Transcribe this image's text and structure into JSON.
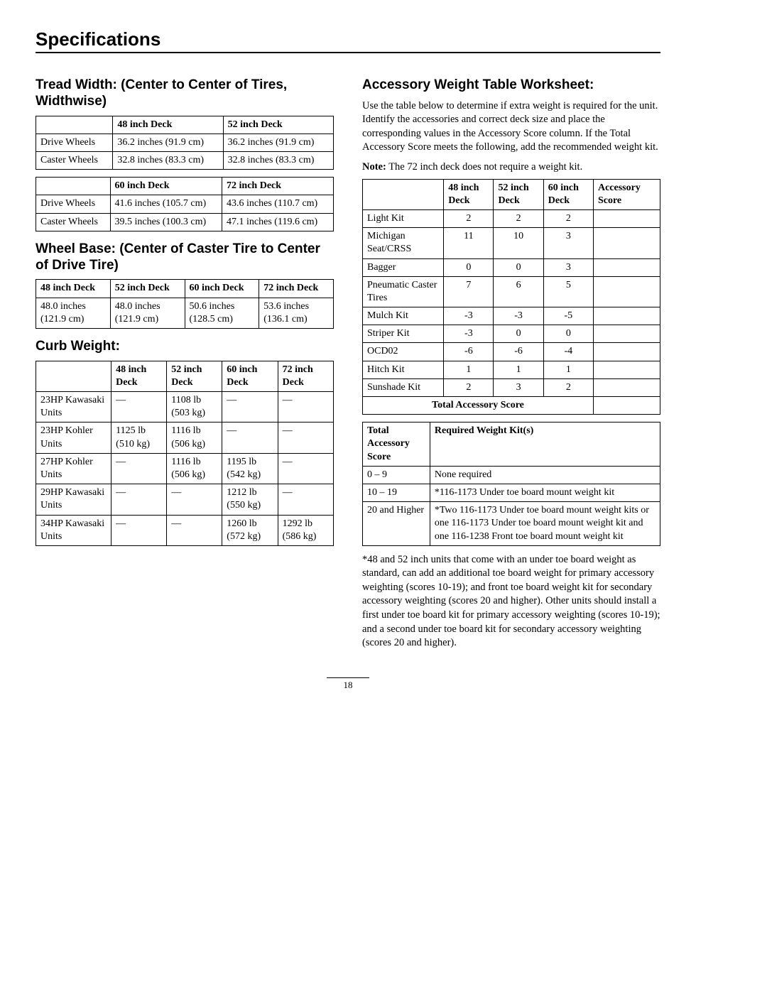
{
  "page_title": "Specifications",
  "page_number": "18",
  "left": {
    "tread_width": {
      "heading": "Tread Width: (Center to Center of Tires, Widthwise)",
      "table1": {
        "headers": [
          "",
          "48 inch Deck",
          "52 inch Deck"
        ],
        "rows": [
          [
            "Drive Wheels",
            "36.2 inches (91.9 cm)",
            "36.2 inches (91.9 cm)"
          ],
          [
            "Caster Wheels",
            "32.8 inches (83.3 cm)",
            "32.8 inches (83.3 cm)"
          ]
        ]
      },
      "table2": {
        "headers": [
          "",
          "60 inch Deck",
          "72 inch Deck"
        ],
        "rows": [
          [
            "Drive Wheels",
            "41.6 inches (105.7 cm)",
            "43.6 inches (110.7 cm)"
          ],
          [
            "Caster Wheels",
            "39.5 inches (100.3 cm)",
            "47.1 inches (119.6 cm)"
          ]
        ]
      }
    },
    "wheel_base": {
      "heading": "Wheel Base: (Center of Caster Tire to Center of Drive Tire)",
      "headers": [
        "48 inch Deck",
        "52 inch Deck",
        "60 inch Deck",
        "72 inch Deck"
      ],
      "row": [
        "48.0 inches (121.9 cm)",
        "48.0 inches (121.9 cm)",
        "50.6 inches (128.5 cm)",
        "53.6 inches (136.1 cm)"
      ]
    },
    "curb_weight": {
      "heading": "Curb Weight:",
      "headers": [
        "",
        "48 inch Deck",
        "52 inch Deck",
        "60 inch Deck",
        "72 inch Deck"
      ],
      "rows": [
        [
          "23HP Kawasaki Units",
          "—",
          "1108 lb (503 kg)",
          "—",
          "—"
        ],
        [
          "23HP Kohler Units",
          "1125 lb (510 kg)",
          "1116 lb (506 kg)",
          "—",
          "—"
        ],
        [
          "27HP Kohler Units",
          "—",
          "1116 lb (506 kg)",
          "1195 lb (542 kg)",
          "—"
        ],
        [
          "29HP Kawasaki Units",
          "—",
          "—",
          "1212 lb (550 kg)",
          "—"
        ],
        [
          "34HP Kawasaki Units",
          "—",
          "—",
          "1260 lb (572 kg)",
          "1292 lb (586 kg)"
        ]
      ]
    }
  },
  "right": {
    "heading": "Accessory Weight Table Worksheet:",
    "intro": "Use the table below to determine if extra weight is required for the unit. Identify the accessories and correct deck size and place the corresponding values in the Accessory Score column. If the Total Accessory Score meets the following, add the recommended weight kit.",
    "note_label": "Note:",
    "note_text": " The 72 inch deck does not require a weight kit.",
    "accessory_table": {
      "headers": [
        "",
        "48 inch Deck",
        "52 inch Deck",
        "60 inch Deck",
        "Accessory Score"
      ],
      "rows": [
        [
          "Light Kit",
          "2",
          "2",
          "2",
          ""
        ],
        [
          "Michigan Seat/CRSS",
          "11",
          "10",
          "3",
          ""
        ],
        [
          "Bagger",
          "0",
          "0",
          "3",
          ""
        ],
        [
          "Pneumatic Caster Tires",
          "7",
          "6",
          "5",
          ""
        ],
        [
          "Mulch Kit",
          "-3",
          "-3",
          "-5",
          ""
        ],
        [
          "Striper Kit",
          "-3",
          "0",
          "0",
          ""
        ],
        [
          "OCD02",
          "-6",
          "-6",
          "-4",
          ""
        ],
        [
          "Hitch Kit",
          "1",
          "1",
          "1",
          ""
        ],
        [
          "Sunshade Kit",
          "2",
          "3",
          "2",
          ""
        ]
      ],
      "total_label": "Total Accessory Score"
    },
    "kit_table": {
      "headers": [
        "Total Accessory Score",
        "Required Weight Kit(s)"
      ],
      "rows": [
        [
          "0 – 9",
          "None required"
        ],
        [
          "10 – 19",
          "*116-1173 Under toe board mount weight kit"
        ],
        [
          "20 and Higher",
          "*Two 116-1173 Under toe board mount weight kits or one 116-1173 Under toe board mount weight kit and one 116-1238 Front toe board mount weight kit"
        ]
      ]
    },
    "footnote": "*48 and 52 inch units that come with an under toe board weight as standard, can add an additional toe board weight for primary accessory weighting (scores 10-19); and front toe board weight kit for secondary accessory weighting (scores 20 and higher). Other units should install a first under toe board kit for primary accessory weighting (scores 10-19); and a second under toe board kit for secondary accessory weighting (scores 20 and higher)."
  }
}
